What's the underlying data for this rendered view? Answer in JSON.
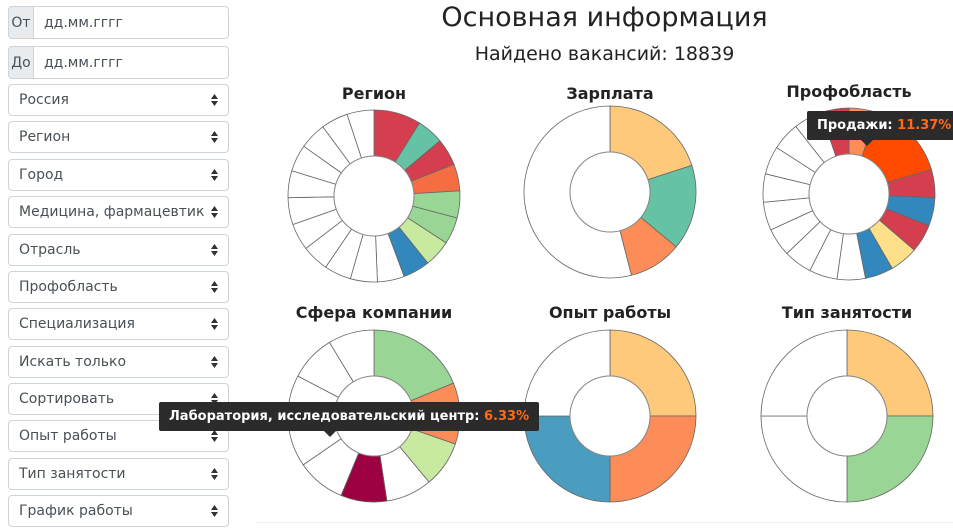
{
  "sidebar": {
    "date_from": {
      "prefix": "От",
      "placeholder": "дд.мм.гггг"
    },
    "date_to": {
      "prefix": "До",
      "placeholder": "дд.мм.гггг"
    },
    "selects": [
      {
        "label": "Россия",
        "name": "country-select"
      },
      {
        "label": "Регион",
        "name": "region-select"
      },
      {
        "label": "Город",
        "name": "city-select"
      },
      {
        "label": "Медицина, фармацевтика, аптеки",
        "name": "industry-select"
      },
      {
        "label": "Отрасль",
        "name": "branch-select"
      },
      {
        "label": "Профобласть",
        "name": "profarea-select"
      },
      {
        "label": "Специализация",
        "name": "specialization-select"
      },
      {
        "label": "Искать только",
        "name": "search-only-select"
      },
      {
        "label": "Сортировать",
        "name": "sort-select"
      },
      {
        "label": "Опыт работы",
        "name": "experience-select"
      },
      {
        "label": "Тип занятости",
        "name": "employment-select"
      },
      {
        "label": "График работы",
        "name": "schedule-select"
      }
    ]
  },
  "main": {
    "title": "Основная информация",
    "found_label": "Найдено вакансий: 18839"
  },
  "charts": [
    {
      "title": "Регион"
    },
    {
      "title": "Зарплата"
    },
    {
      "title": "Профобласть"
    },
    {
      "title": "Сфера компании"
    },
    {
      "title": "Опыт работы"
    },
    {
      "title": "Тип занятости"
    }
  ],
  "tooltips": {
    "profarea": {
      "label": "Продажи: ",
      "value": "11.37%"
    },
    "sphere": {
      "label": "Лаборатория, исследовательский центр: ",
      "value": "6.33%"
    }
  },
  "chart_data": [
    {
      "type": "pie",
      "title": "Регион",
      "ring": [
        {
          "value": 7,
          "color": "#d53e4f"
        },
        {
          "value": 4,
          "color": "#66c2a5"
        },
        {
          "value": 4,
          "color": "#d53e4f"
        },
        {
          "value": 4,
          "color": "#f46d43"
        },
        {
          "value": 4,
          "color": "#99d594"
        },
        {
          "value": 4,
          "color": "#99d594"
        },
        {
          "value": 4,
          "color": "#c7e9a0"
        },
        {
          "value": 4,
          "color": "#3288bd"
        },
        {
          "value": 4,
          "color": "#ffffff"
        },
        {
          "value": 4,
          "color": "#ffffff"
        },
        {
          "value": 4,
          "color": "#ffffff"
        },
        {
          "value": 4,
          "color": "#ffffff"
        },
        {
          "value": 4,
          "color": "#ffffff"
        },
        {
          "value": 4,
          "color": "#ffffff"
        },
        {
          "value": 4,
          "color": "#ffffff"
        },
        {
          "value": 4,
          "color": "#ffffff"
        },
        {
          "value": 4,
          "color": "#ffffff"
        },
        {
          "value": 4,
          "color": "#ffffff"
        },
        {
          "value": 4,
          "color": "#ffffff"
        }
      ]
    },
    {
      "type": "pie",
      "title": "Зарплата",
      "ring": [
        {
          "value": 20,
          "color": "#fec97a"
        },
        {
          "value": 16,
          "color": "#66c2a5"
        },
        {
          "value": 10,
          "color": "#fc8d59"
        },
        {
          "value": 54,
          "color": "#ffffff"
        }
      ]
    },
    {
      "type": "pie",
      "title": "Профобласть",
      "ring": [
        {
          "value": 4,
          "color": "#fc8d59"
        },
        {
          "value": 11.37,
          "color": "#ff4a00"
        },
        {
          "value": 4,
          "color": "#d53e4f"
        },
        {
          "value": 4,
          "color": "#3288bd"
        },
        {
          "value": 4,
          "color": "#d53e4f"
        },
        {
          "value": 4,
          "color": "#fee08b"
        },
        {
          "value": 4,
          "color": "#3288bd"
        },
        {
          "value": 4,
          "color": "#ffffff"
        },
        {
          "value": 4,
          "color": "#ffffff"
        },
        {
          "value": 4,
          "color": "#ffffff"
        },
        {
          "value": 4,
          "color": "#ffffff"
        },
        {
          "value": 4,
          "color": "#ffffff"
        },
        {
          "value": 4,
          "color": "#ffffff"
        },
        {
          "value": 4,
          "color": "#ffffff"
        },
        {
          "value": 4,
          "color": "#ffffff"
        },
        {
          "value": 4,
          "color": "#ffffff"
        },
        {
          "value": 4,
          "color": "#d53e4f"
        }
      ]
    },
    {
      "type": "pie",
      "title": "Сфера компании",
      "ring": [
        {
          "value": 13,
          "color": "#99d594"
        },
        {
          "value": 8,
          "color": "#fc8d59"
        },
        {
          "value": 6,
          "color": "#c7e9a0"
        },
        {
          "value": 6,
          "color": "#ffffff"
        },
        {
          "value": 6,
          "color": "#9e0142"
        },
        {
          "value": 6.33,
          "color": "#ffffff"
        },
        {
          "value": 6,
          "color": "#ffffff"
        },
        {
          "value": 6,
          "color": "#ffffff"
        },
        {
          "value": 6,
          "color": "#ffffff"
        },
        {
          "value": 6,
          "color": "#ffffff"
        }
      ]
    },
    {
      "type": "pie",
      "title": "Опыт работы",
      "ring": [
        {
          "value": 25,
          "color": "#fec97a"
        },
        {
          "value": 25,
          "color": "#fc8d59"
        },
        {
          "value": 25,
          "color": "#4a9dbe"
        },
        {
          "value": 25,
          "color": "#ffffff"
        }
      ]
    },
    {
      "type": "pie",
      "title": "Тип занятости",
      "ring": [
        {
          "value": 25,
          "color": "#fec97a"
        },
        {
          "value": 25,
          "color": "#99d594"
        },
        {
          "value": 25,
          "color": "#ffffff"
        },
        {
          "value": 25,
          "color": "#ffffff"
        }
      ]
    }
  ]
}
